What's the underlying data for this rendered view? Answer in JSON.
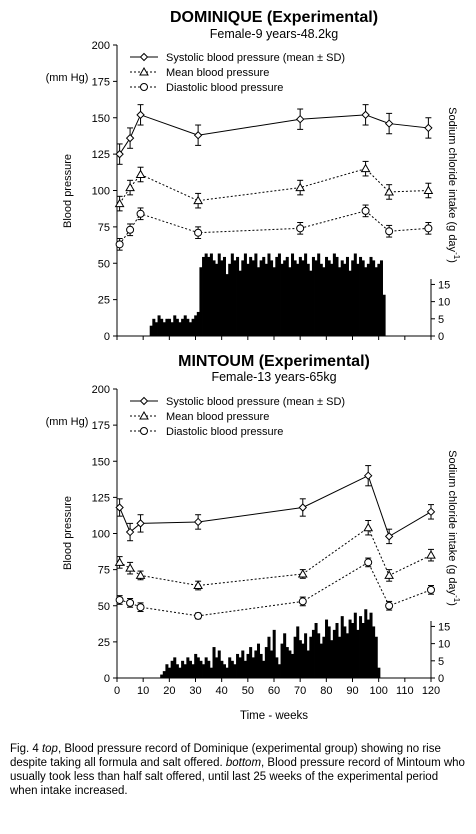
{
  "figure": {
    "caption": {
      "label": "Fig. 4",
      "top_word": "top",
      "text1": ", Blood pressure record of Dominique (experimental group) showing no rise despite taking all formula and salt offered.",
      "bottom_word": "bottom",
      "text2": ", Blood pressure record of Mintoum who usually took less than half salt offered, until last 25 weeks of the experimental period when intake increased."
    },
    "xlabel": "Time - weeks"
  },
  "chart_data": [
    {
      "type": "line",
      "title": "DOMINIQUE (Experimental)",
      "subtitle": "Female-9 years-48.2kg",
      "ylabel": "Blood pressure",
      "yunit": "(mm Hg)",
      "y2label": "Sodium chloride intake (g day-1)",
      "ylim": [
        0,
        200
      ],
      "yticks": [
        0,
        25,
        50,
        75,
        100,
        125,
        150,
        175,
        200
      ],
      "y2ticks": [
        0,
        5,
        10,
        15
      ],
      "xlim": [
        0,
        120
      ],
      "legend_position": "top",
      "series": [
        {
          "name": "Systolic blood pressure (mean ± SD)",
          "marker": "diamond",
          "line": "solid",
          "x": [
            1,
            5,
            9,
            31,
            70,
            95,
            104,
            119
          ],
          "y": [
            125,
            136,
            152,
            138,
            149,
            152,
            146,
            143
          ],
          "err": [
            7,
            7,
            7,
            7,
            7,
            7,
            7,
            7
          ]
        },
        {
          "name": "Mean blood pressure",
          "marker": "triangle",
          "line": "dotted",
          "x": [
            1,
            5,
            9,
            31,
            70,
            95,
            104,
            119
          ],
          "y": [
            91,
            102,
            111,
            93,
            102,
            115,
            99,
            100
          ],
          "err": [
            5,
            5,
            5,
            5,
            5,
            5,
            5,
            5
          ]
        },
        {
          "name": "Diastolic blood pressure",
          "marker": "circle",
          "line": "dotted",
          "x": [
            1,
            5,
            9,
            31,
            70,
            95,
            104,
            119
          ],
          "y": [
            63,
            73,
            84,
            71,
            74,
            86,
            72,
            74
          ],
          "err": [
            4,
            4,
            4,
            4,
            4,
            4,
            4,
            4
          ]
        }
      ],
      "intake_bars": {
        "label": "Sodium chloride intake",
        "x": [
          13,
          14,
          15,
          16,
          17,
          18,
          19,
          20,
          21,
          22,
          23,
          24,
          25,
          26,
          27,
          28,
          29,
          30,
          31,
          32,
          33,
          34,
          35,
          36,
          37,
          38,
          39,
          40,
          41,
          42,
          43,
          44,
          45,
          46,
          47,
          48,
          49,
          50,
          51,
          52,
          53,
          54,
          55,
          56,
          57,
          58,
          59,
          60,
          61,
          62,
          63,
          64,
          65,
          66,
          67,
          68,
          69,
          70,
          71,
          72,
          73,
          74,
          75,
          76,
          77,
          78,
          79,
          80,
          81,
          82,
          83,
          84,
          85,
          86,
          87,
          88,
          89,
          90,
          91,
          92,
          93,
          94,
          95,
          96,
          97,
          98,
          99,
          100,
          101,
          102
        ],
        "values": [
          3,
          5,
          4,
          6,
          5,
          4,
          5,
          5,
          4,
          6,
          5,
          4,
          5,
          6,
          5,
          4,
          5,
          6,
          7,
          20,
          23,
          24,
          23,
          24,
          22,
          21,
          24,
          22,
          23,
          18,
          21,
          24,
          22,
          23,
          19,
          22,
          24,
          21,
          23,
          22,
          24,
          20,
          22,
          23,
          21,
          24,
          22,
          20,
          23,
          24,
          21,
          22,
          23,
          20,
          24,
          22,
          21,
          23,
          22,
          24,
          21,
          19,
          23,
          22,
          24,
          21,
          20,
          23,
          22,
          21,
          24,
          23,
          20,
          22,
          21,
          23,
          19,
          22,
          24,
          21,
          23,
          22,
          20,
          21,
          23,
          22,
          20,
          21,
          22,
          12
        ]
      }
    },
    {
      "type": "line",
      "title": "MINTOUM (Experimental)",
      "subtitle": "Female-13 years-65kg",
      "ylabel": "Blood pressure",
      "yunit": "(mm Hg)",
      "y2label": "Sodium chloride intake (g day-1)",
      "ylim": [
        0,
        200
      ],
      "yticks": [
        0,
        25,
        50,
        75,
        100,
        125,
        150,
        175,
        200
      ],
      "y2ticks": [
        0,
        5,
        10,
        15
      ],
      "xlim": [
        0,
        120
      ],
      "xticks": [
        0,
        10,
        20,
        30,
        40,
        50,
        60,
        70,
        80,
        90,
        100,
        110,
        120
      ],
      "legend_position": "top",
      "series": [
        {
          "name": "Systolic blood pressure (mean ± SD)",
          "marker": "diamond",
          "line": "solid",
          "x": [
            1,
            5,
            9,
            31,
            71,
            96,
            104,
            120
          ],
          "y": [
            118,
            101,
            107,
            108,
            118,
            140,
            98,
            115
          ],
          "err": [
            6,
            6,
            6,
            5,
            6,
            7,
            5,
            5
          ]
        },
        {
          "name": "Mean blood pressure",
          "marker": "triangle",
          "line": "dotted",
          "x": [
            1,
            5,
            9,
            31,
            71,
            96,
            104,
            120
          ],
          "y": [
            80,
            76,
            71,
            64,
            72,
            104,
            71,
            85
          ],
          "err": [
            4,
            4,
            3,
            3,
            3,
            5,
            4,
            4
          ]
        },
        {
          "name": "Diastolic blood pressure",
          "marker": "circle",
          "line": "dotted",
          "x": [
            1,
            5,
            9,
            31,
            71,
            96,
            104,
            120
          ],
          "y": [
            54,
            52,
            49,
            43,
            53,
            80,
            50,
            61
          ],
          "err": [
            3,
            3,
            3,
            2,
            3,
            3,
            3,
            3
          ]
        }
      ],
      "intake_bars": {
        "label": "Sodium chloride intake",
        "x": [
          17,
          18,
          19,
          20,
          21,
          22,
          23,
          24,
          25,
          26,
          27,
          28,
          29,
          30,
          31,
          32,
          33,
          34,
          35,
          36,
          37,
          38,
          39,
          40,
          41,
          42,
          43,
          44,
          45,
          46,
          47,
          48,
          49,
          50,
          51,
          52,
          53,
          54,
          55,
          56,
          57,
          58,
          59,
          60,
          61,
          62,
          63,
          64,
          65,
          66,
          67,
          68,
          69,
          70,
          71,
          72,
          73,
          74,
          75,
          76,
          77,
          78,
          79,
          80,
          81,
          82,
          83,
          84,
          85,
          86,
          87,
          88,
          89,
          90,
          91,
          92,
          93,
          94,
          95,
          96,
          97,
          98,
          99,
          100
        ],
        "values": [
          1,
          2,
          4,
          3,
          5,
          6,
          4,
          3,
          5,
          4,
          6,
          5,
          4,
          7,
          6,
          5,
          4,
          6,
          5,
          3,
          9,
          6,
          8,
          5,
          4,
          3,
          6,
          5,
          4,
          7,
          6,
          8,
          5,
          7,
          9,
          6,
          8,
          10,
          7,
          5,
          9,
          12,
          8,
          14,
          6,
          4,
          10,
          13,
          9,
          8,
          7,
          12,
          15,
          11,
          10,
          13,
          8,
          12,
          14,
          16,
          13,
          10,
          12,
          17,
          15,
          11,
          14,
          16,
          12,
          18,
          15,
          13,
          17,
          16,
          19,
          14,
          18,
          16,
          20,
          17,
          19,
          15,
          12,
          3
        ]
      }
    }
  ]
}
